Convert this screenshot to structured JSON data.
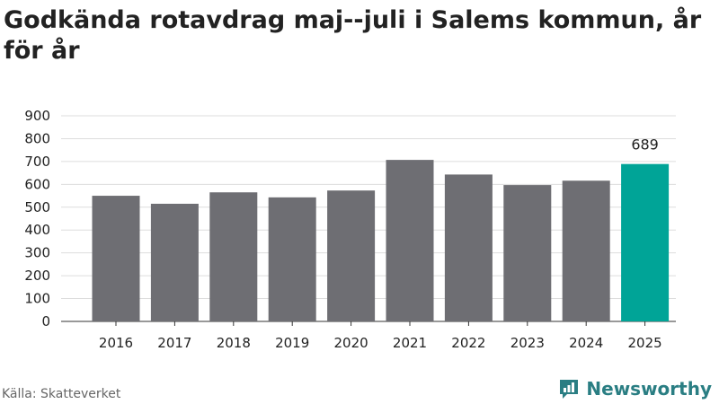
{
  "title": "Godkända rotavdrag maj--juli i Salems kommun, år för år",
  "source": "Källa: Skatteverket",
  "brand": {
    "name": "Newsworthy",
    "icon": "newsworthy-logo-icon"
  },
  "colors": {
    "bar": "#6e6e73",
    "highlight": "#00a497",
    "grid": "#dddddd",
    "axis": "#333333"
  },
  "chart_data": {
    "type": "bar",
    "title": "Godkända rotavdrag maj--juli i Salems kommun, år för år",
    "xlabel": "",
    "ylabel": "",
    "categories": [
      "2016",
      "2017",
      "2018",
      "2019",
      "2020",
      "2021",
      "2022",
      "2023",
      "2024",
      "2025"
    ],
    "values": [
      550,
      515,
      565,
      543,
      573,
      707,
      643,
      597,
      616,
      689
    ],
    "highlight_index": 9,
    "labels": [
      null,
      null,
      null,
      null,
      null,
      null,
      null,
      null,
      null,
      "689"
    ],
    "ylim": [
      0,
      900
    ],
    "yticks": [
      "0",
      "100",
      "200",
      "300",
      "400",
      "500",
      "600",
      "700",
      "800",
      "900"
    ],
    "grid": true,
    "legend": "none"
  }
}
